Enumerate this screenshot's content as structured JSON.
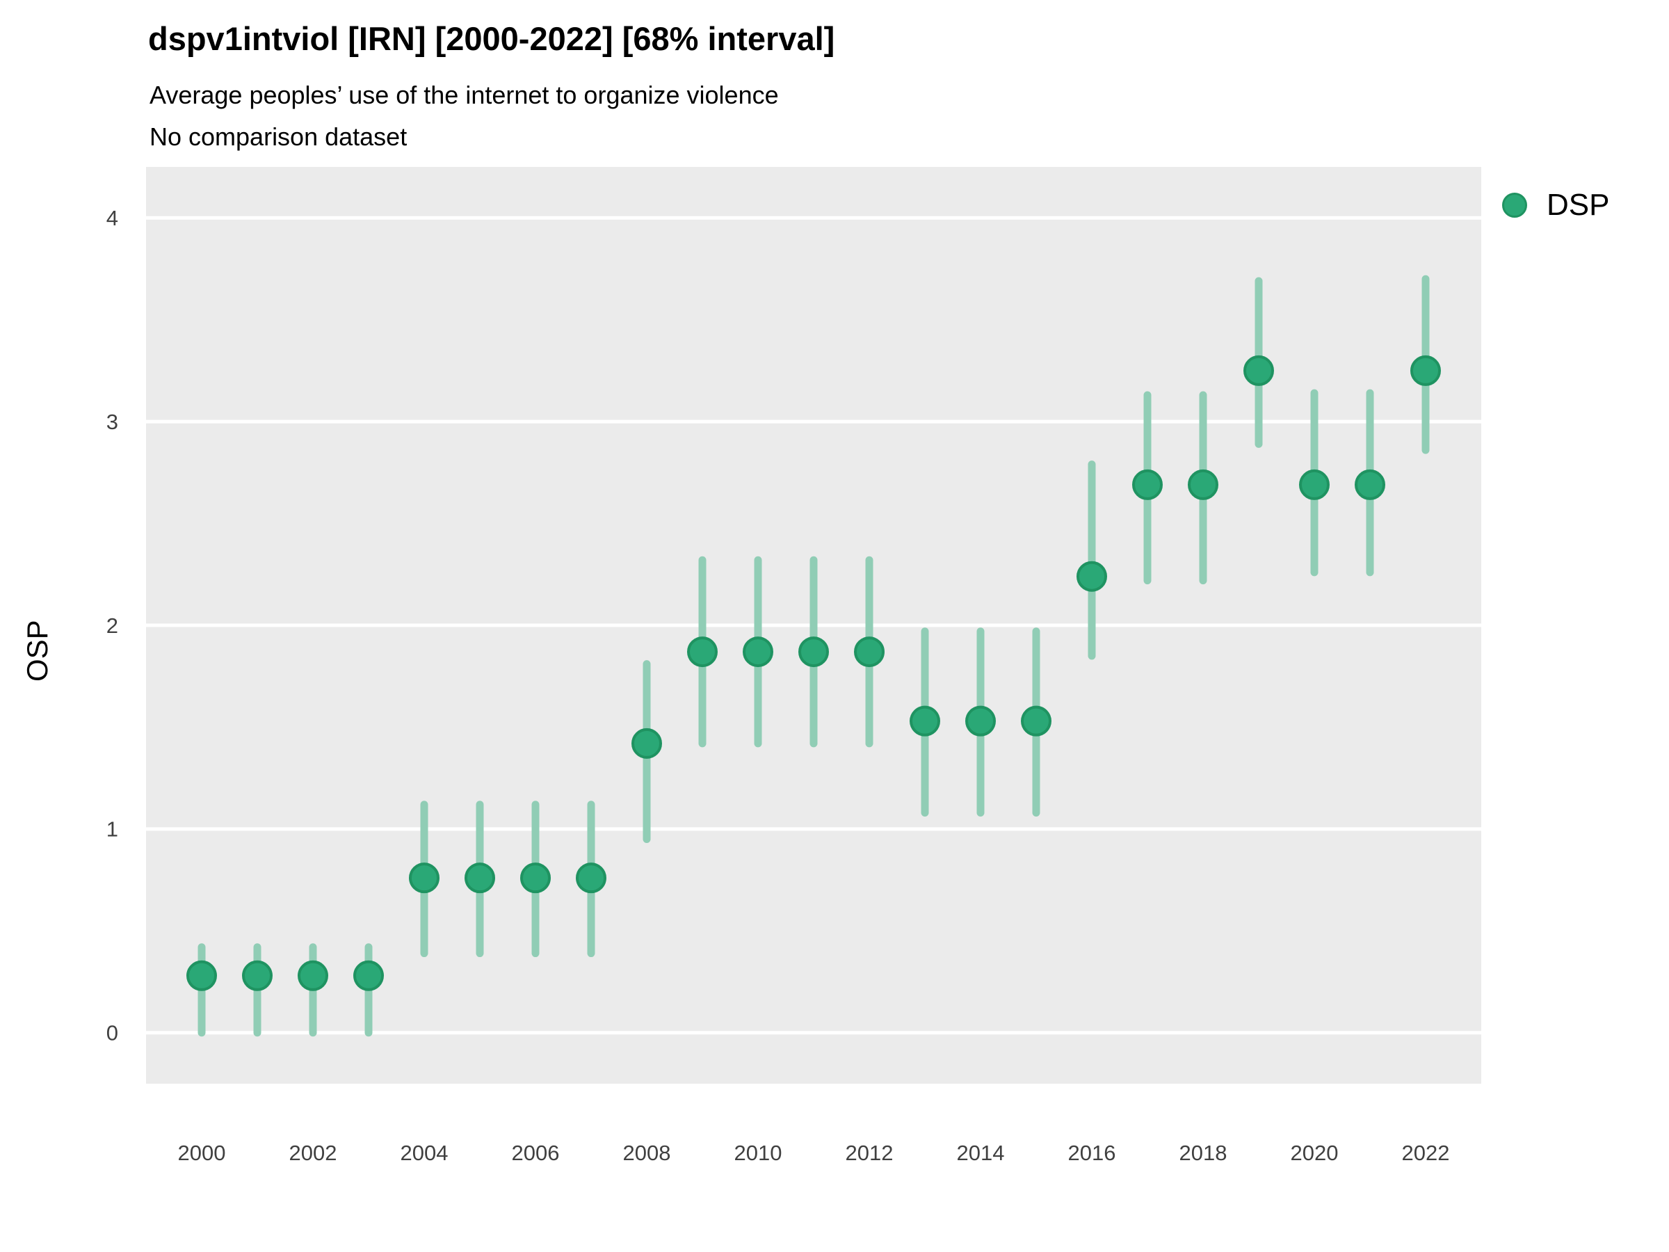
{
  "header": {
    "title": "dspv1intviol [IRN] [2000-2022] [68% interval]",
    "subtitle1": "Average peoples’ use of the internet to organize violence",
    "subtitle2": "No comparison dataset"
  },
  "axes": {
    "y_title": "OSP",
    "y_ticks": [
      0,
      1,
      2,
      3,
      4
    ],
    "x_ticks": [
      2000,
      2002,
      2004,
      2006,
      2008,
      2010,
      2012,
      2014,
      2016,
      2018,
      2020,
      2022
    ]
  },
  "legend": {
    "items": [
      {
        "label": "DSP",
        "color": "#2aa876"
      }
    ]
  },
  "colors": {
    "panel": "#EBEBEB",
    "grid": "#FFFFFF",
    "interval": "#90CDB5",
    "point_fill": "#2aa876",
    "point_stroke": "#1f9361",
    "tick_text": "#404040",
    "text": "#000000"
  },
  "chart_data": {
    "type": "scatter",
    "mark": "pointrange",
    "title": "dspv1intviol [IRN] [2000-2022] [68% interval]",
    "subtitle": "Average peoples’ use of the internet to organize violence",
    "note": "No comparison dataset",
    "xlabel": "",
    "ylabel": "OSP",
    "interval_level": "68%",
    "xlim": [
      1999,
      2023
    ],
    "ylim": [
      -0.25,
      4.25
    ],
    "grid": "horizontal-major-only",
    "legend_position": "right",
    "series": [
      {
        "name": "DSP",
        "points": [
          {
            "year": 2000,
            "value": 0.28,
            "lower": 0.0,
            "upper": 0.42
          },
          {
            "year": 2001,
            "value": 0.28,
            "lower": 0.0,
            "upper": 0.42
          },
          {
            "year": 2002,
            "value": 0.28,
            "lower": 0.0,
            "upper": 0.42
          },
          {
            "year": 2003,
            "value": 0.28,
            "lower": 0.0,
            "upper": 0.42
          },
          {
            "year": 2004,
            "value": 0.76,
            "lower": 0.39,
            "upper": 1.12
          },
          {
            "year": 2005,
            "value": 0.76,
            "lower": 0.39,
            "upper": 1.12
          },
          {
            "year": 2006,
            "value": 0.76,
            "lower": 0.39,
            "upper": 1.12
          },
          {
            "year": 2007,
            "value": 0.76,
            "lower": 0.39,
            "upper": 1.12
          },
          {
            "year": 2008,
            "value": 1.42,
            "lower": 0.95,
            "upper": 1.81
          },
          {
            "year": 2009,
            "value": 1.87,
            "lower": 1.42,
            "upper": 2.32
          },
          {
            "year": 2010,
            "value": 1.87,
            "lower": 1.42,
            "upper": 2.32
          },
          {
            "year": 2011,
            "value": 1.87,
            "lower": 1.42,
            "upper": 2.32
          },
          {
            "year": 2012,
            "value": 1.87,
            "lower": 1.42,
            "upper": 2.32
          },
          {
            "year": 2013,
            "value": 1.53,
            "lower": 1.08,
            "upper": 1.97
          },
          {
            "year": 2014,
            "value": 1.53,
            "lower": 1.08,
            "upper": 1.97
          },
          {
            "year": 2015,
            "value": 1.53,
            "lower": 1.08,
            "upper": 1.97
          },
          {
            "year": 2016,
            "value": 2.24,
            "lower": 1.85,
            "upper": 2.79
          },
          {
            "year": 2017,
            "value": 2.69,
            "lower": 2.22,
            "upper": 3.13
          },
          {
            "year": 2018,
            "value": 2.69,
            "lower": 2.22,
            "upper": 3.13
          },
          {
            "year": 2019,
            "value": 3.25,
            "lower": 2.89,
            "upper": 3.69
          },
          {
            "year": 2020,
            "value": 2.69,
            "lower": 2.26,
            "upper": 3.14
          },
          {
            "year": 2021,
            "value": 2.69,
            "lower": 2.26,
            "upper": 3.14
          },
          {
            "year": 2022,
            "value": 3.25,
            "lower": 2.86,
            "upper": 3.7
          }
        ]
      }
    ]
  }
}
